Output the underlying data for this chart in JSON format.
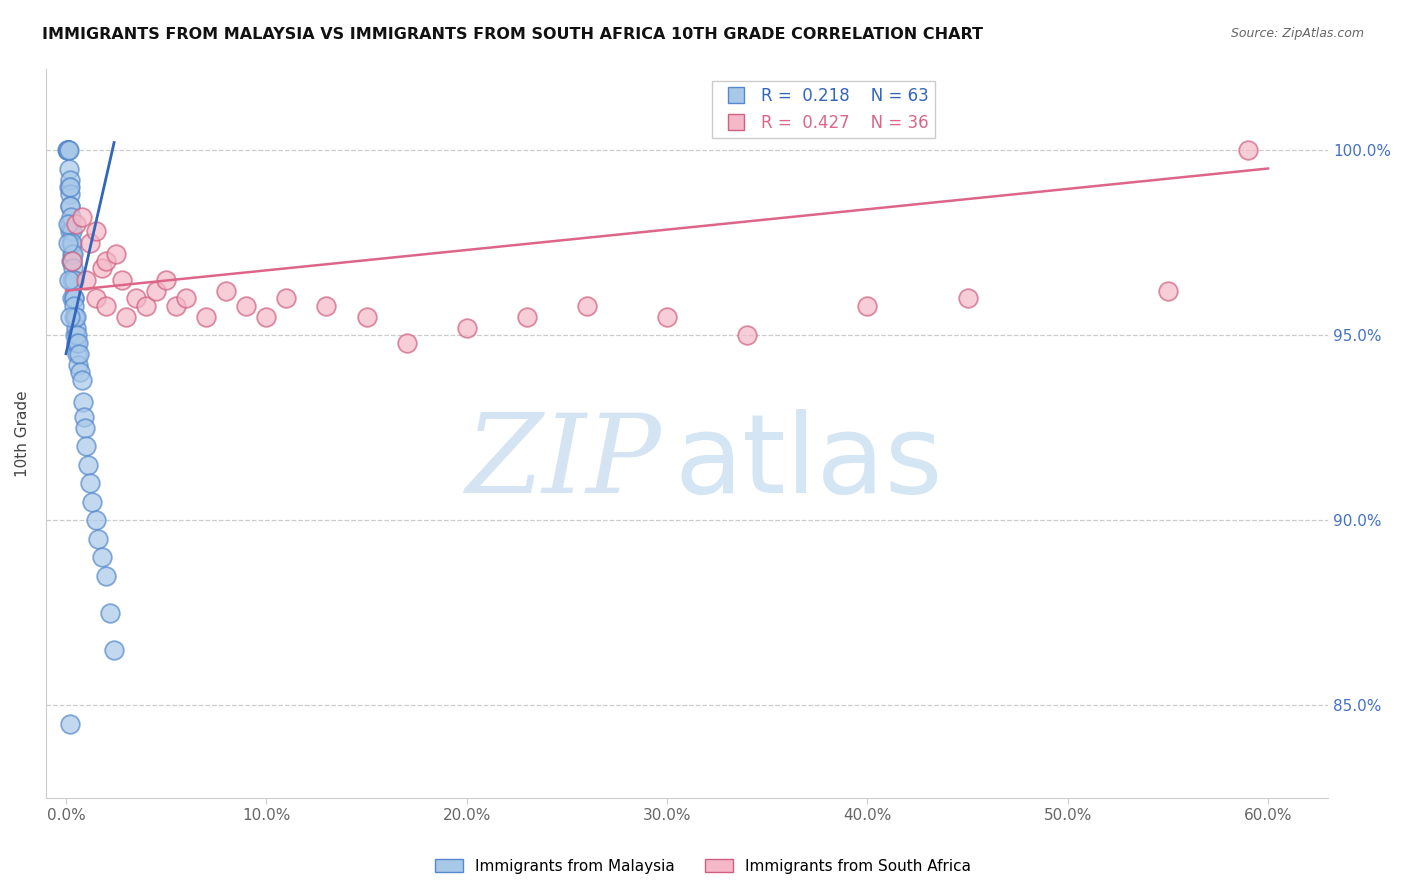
{
  "title": "IMMIGRANTS FROM MALAYSIA VS IMMIGRANTS FROM SOUTH AFRICA 10TH GRADE CORRELATION CHART",
  "source": "Source: ZipAtlas.com",
  "ylabel": "10th Grade",
  "x_tick_labels": [
    "0.0%",
    "10.0%",
    "20.0%",
    "30.0%",
    "40.0%",
    "50.0%",
    "60.0%"
  ],
  "x_tick_vals": [
    0.0,
    10.0,
    20.0,
    30.0,
    40.0,
    50.0,
    60.0
  ],
  "y_tick_labels": [
    "85.0%",
    "90.0%",
    "95.0%",
    "100.0%"
  ],
  "y_tick_vals": [
    85.0,
    90.0,
    95.0,
    100.0
  ],
  "xlim": [
    -1.0,
    63.0
  ],
  "ylim": [
    82.5,
    102.2
  ],
  "malaysia_color": "#a8c8e8",
  "malaysia_edge_color": "#5588cc",
  "sa_color": "#f4b8c8",
  "sa_edge_color": "#d06080",
  "malaysia_line_color": "#3366bb",
  "sa_line_color": "#dd6688",
  "malaysia_R": "0.218",
  "malaysia_N": "63",
  "sa_R": "0.427",
  "sa_N": "36",
  "malaysia_x": [
    0.05,
    0.08,
    0.1,
    0.1,
    0.12,
    0.12,
    0.15,
    0.15,
    0.15,
    0.18,
    0.18,
    0.2,
    0.2,
    0.2,
    0.22,
    0.22,
    0.25,
    0.25,
    0.25,
    0.28,
    0.28,
    0.3,
    0.3,
    0.3,
    0.3,
    0.35,
    0.35,
    0.38,
    0.38,
    0.4,
    0.4,
    0.4,
    0.42,
    0.45,
    0.45,
    0.48,
    0.5,
    0.5,
    0.55,
    0.55,
    0.6,
    0.6,
    0.65,
    0.7,
    0.8,
    0.85,
    0.9,
    0.95,
    1.0,
    1.1,
    1.2,
    1.3,
    1.5,
    1.6,
    1.8,
    2.0,
    2.2,
    2.4,
    0.1,
    0.12,
    0.15,
    0.18,
    0.2
  ],
  "malaysia_y": [
    100.0,
    100.0,
    100.0,
    100.0,
    100.0,
    100.0,
    100.0,
    99.5,
    99.0,
    99.2,
    98.8,
    99.0,
    98.5,
    98.0,
    98.5,
    97.8,
    98.2,
    97.5,
    97.0,
    97.8,
    97.2,
    97.5,
    97.0,
    96.5,
    96.0,
    97.2,
    96.8,
    96.5,
    96.0,
    96.5,
    96.0,
    95.5,
    95.8,
    95.5,
    95.0,
    95.2,
    95.5,
    94.8,
    95.0,
    94.5,
    94.8,
    94.2,
    94.5,
    94.0,
    93.8,
    93.2,
    92.8,
    92.5,
    92.0,
    91.5,
    91.0,
    90.5,
    90.0,
    89.5,
    89.0,
    88.5,
    87.5,
    86.5,
    98.0,
    97.5,
    96.5,
    95.5,
    84.5
  ],
  "sa_x": [
    0.3,
    0.5,
    0.8,
    1.0,
    1.2,
    1.5,
    1.5,
    1.8,
    2.0,
    2.0,
    2.5,
    2.8,
    3.0,
    3.5,
    4.0,
    4.5,
    5.0,
    5.5,
    6.0,
    7.0,
    8.0,
    9.0,
    10.0,
    11.0,
    13.0,
    15.0,
    17.0,
    20.0,
    23.0,
    26.0,
    30.0,
    34.0,
    40.0,
    45.0,
    55.0,
    59.0
  ],
  "sa_y": [
    97.0,
    98.0,
    98.2,
    96.5,
    97.5,
    96.0,
    97.8,
    96.8,
    97.0,
    95.8,
    97.2,
    96.5,
    95.5,
    96.0,
    95.8,
    96.2,
    96.5,
    95.8,
    96.0,
    95.5,
    96.2,
    95.8,
    95.5,
    96.0,
    95.8,
    95.5,
    94.8,
    95.2,
    95.5,
    95.8,
    95.5,
    95.0,
    95.8,
    96.0,
    96.2,
    100.0
  ],
  "mal_line_x0": 0.0,
  "mal_line_x1": 2.4,
  "mal_line_y0": 94.5,
  "mal_line_y1": 100.2,
  "sa_line_x0": 0.0,
  "sa_line_x1": 60.0,
  "sa_line_y0": 96.2,
  "sa_line_y1": 99.5
}
